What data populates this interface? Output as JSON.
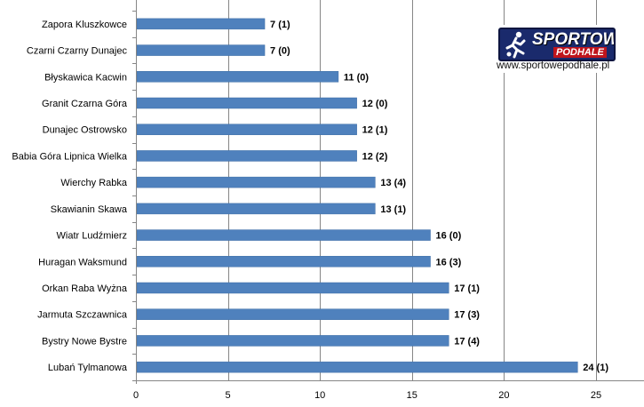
{
  "chart_data": {
    "type": "bar",
    "orientation": "horizontal",
    "categories": [
      "Zapora Kluszkowce",
      "Czarni Czarny Dunajec",
      "Błyskawica Kacwin",
      "Granit Czarna Góra",
      "Dunajec Ostrowsko",
      "Babia Góra Lipnica Wielka",
      "Wierchy Rabka",
      "Skawianin Skawa",
      "Wiatr Ludźmierz",
      "Huragan Waksmund",
      "Orkan Raba Wyżna",
      "Jarmuta Szczawnica",
      "Bystry Nowe Bystre",
      "Lubań Tylmanowa"
    ],
    "values": [
      7,
      7,
      11,
      12,
      12,
      12,
      13,
      13,
      16,
      16,
      17,
      17,
      17,
      24
    ],
    "data_labels": [
      "7 (1)",
      "7 (0)",
      "11 (0)",
      "12 (0)",
      "12 (1)",
      "12 (2)",
      "13 (4)",
      "13 (1)",
      "16 (0)",
      "16 (3)",
      "17 (1)",
      "17 (3)",
      "17 (4)",
      "24 (1)"
    ],
    "xlim": [
      0,
      25
    ],
    "xticks": [
      "0",
      "5",
      "10",
      "15",
      "20",
      "25"
    ],
    "grid": true,
    "bar_color": "#4f81bd",
    "title": "",
    "xlabel": "",
    "ylabel": ""
  },
  "logo": {
    "brand_top": "SPORTOWE",
    "brand_bottom": "PODHALE",
    "url": "www.sportowepodhale.pl"
  }
}
